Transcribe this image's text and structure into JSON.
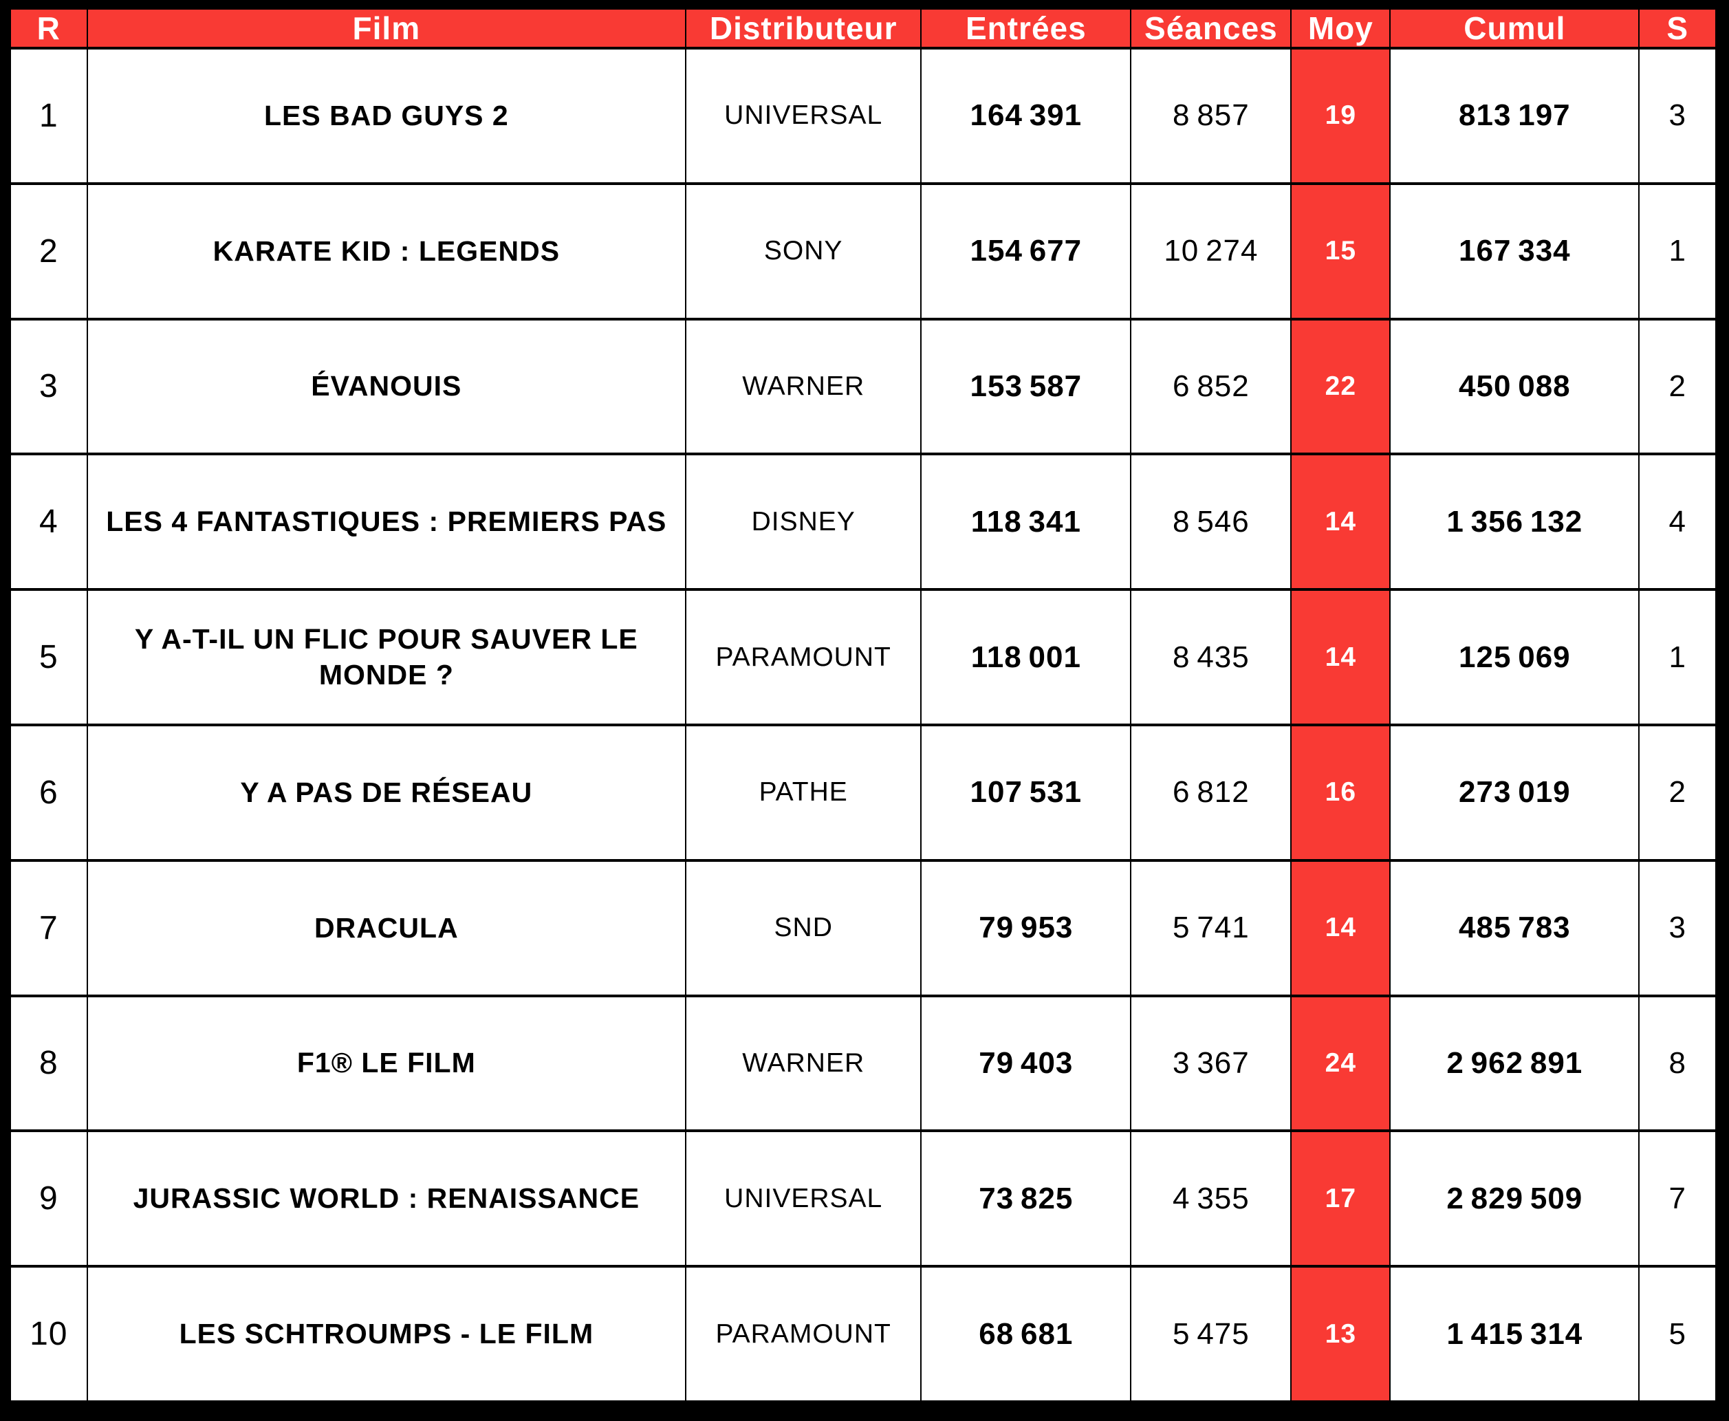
{
  "chart_data": {
    "type": "table",
    "columns": [
      {
        "key": "rank",
        "label": "R"
      },
      {
        "key": "film",
        "label": "Film"
      },
      {
        "key": "distributor",
        "label": "Distributeur"
      },
      {
        "key": "entries",
        "label": "Entrées"
      },
      {
        "key": "sessions",
        "label": "Séances"
      },
      {
        "key": "avg",
        "label": "Moy"
      },
      {
        "key": "cumul",
        "label": "Cumul"
      },
      {
        "key": "weeks",
        "label": "S"
      }
    ],
    "rows": [
      {
        "rank": "1",
        "film": "LES BAD GUYS 2",
        "distributor": "UNIVERSAL",
        "entries": "164 391",
        "sessions": "8 857",
        "avg": "19",
        "cumul": "813 197",
        "weeks": "3"
      },
      {
        "rank": "2",
        "film": "KARATE KID : LEGENDS",
        "distributor": "SONY",
        "entries": "154 677",
        "sessions": "10 274",
        "avg": "15",
        "cumul": "167 334",
        "weeks": "1"
      },
      {
        "rank": "3",
        "film": "ÉVANOUIS",
        "distributor": "WARNER",
        "entries": "153 587",
        "sessions": "6 852",
        "avg": "22",
        "cumul": "450 088",
        "weeks": "2"
      },
      {
        "rank": "4",
        "film": "LES 4 FANTASTIQUES  : PREMIERS PAS",
        "distributor": "DISNEY",
        "entries": "118 341",
        "sessions": "8 546",
        "avg": "14",
        "cumul": "1 356 132",
        "weeks": "4"
      },
      {
        "rank": "5",
        "film": "Y A-T-IL UN FLIC POUR SAUVER LE MONDE ?",
        "distributor": "PARAMOUNT",
        "entries": "118 001",
        "sessions": "8 435",
        "avg": "14",
        "cumul": "125 069",
        "weeks": "1"
      },
      {
        "rank": "6",
        "film": "Y A PAS DE RÉSEAU",
        "distributor": "PATHE",
        "entries": "107 531",
        "sessions": "6 812",
        "avg": "16",
        "cumul": "273 019",
        "weeks": "2"
      },
      {
        "rank": "7",
        "film": "DRACULA",
        "distributor": "SND",
        "entries": "79 953",
        "sessions": "5 741",
        "avg": "14",
        "cumul": "485 783",
        "weeks": "3"
      },
      {
        "rank": "8",
        "film": "F1® LE FILM",
        "distributor": "WARNER",
        "entries": "79 403",
        "sessions": "3 367",
        "avg": "24",
        "cumul": "2 962 891",
        "weeks": "8"
      },
      {
        "rank": "9",
        "film": "JURASSIC WORLD : RENAISSANCE",
        "distributor": "UNIVERSAL",
        "entries": "73 825",
        "sessions": "4 355",
        "avg": "17",
        "cumul": "2 829 509",
        "weeks": "7"
      },
      {
        "rank": "10",
        "film": "LES SCHTROUMPS - LE FILM",
        "distributor": "PARAMOUNT",
        "entries": "68 681",
        "sessions": "5 475",
        "avg": "13",
        "cumul": "1 415 314",
        "weeks": "5"
      }
    ]
  },
  "colors": {
    "accent_red": "#F93A34",
    "header_text": "#FFFFFF",
    "body_text": "#000000",
    "grid": "#000000",
    "frame": "#000000"
  }
}
